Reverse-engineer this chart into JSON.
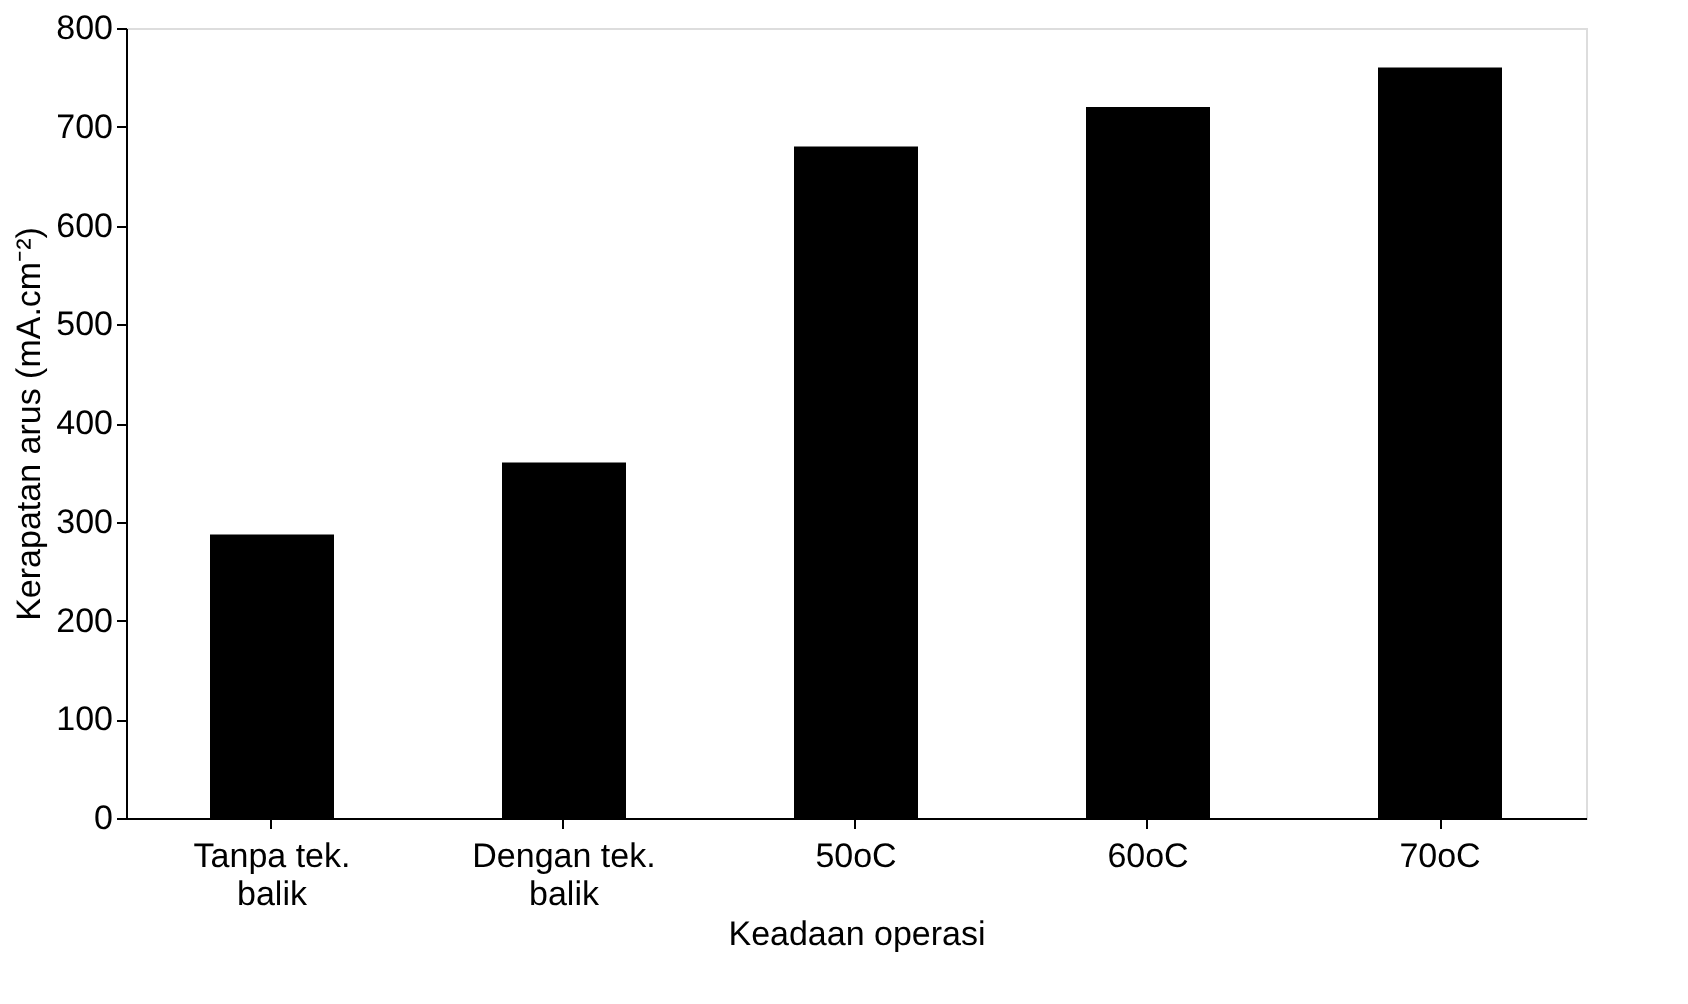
{
  "chart_data": {
    "type": "bar",
    "xlabel": "Keadaan operasi",
    "ylabel": "Kerapatan arus (mA.cm⁻²)",
    "categories": [
      "Tanpa tek. balik",
      "Dengan tek. balik",
      "50oC",
      "60oC",
      "70oC"
    ],
    "values": [
      287,
      360,
      680,
      720,
      760
    ],
    "color": "#000000",
    "ylim": [
      0,
      800
    ],
    "yticks": [
      0,
      100,
      200,
      300,
      400,
      500,
      600,
      700,
      800
    ],
    "grid": false
  }
}
